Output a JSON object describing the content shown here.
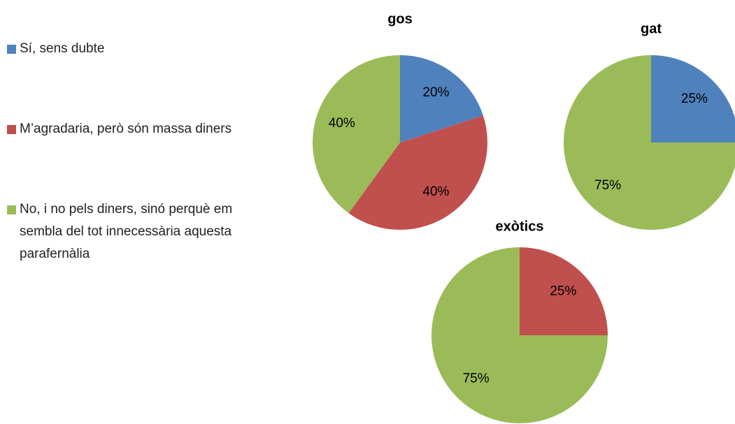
{
  "chart_data": [
    {
      "type": "pie",
      "title": "gos",
      "categories": [
        "Sí, sens dubte",
        "M’agradaria, però són massa diners",
        "No, i no pels diners, sinó perquè em sembla del tot innecessària aquesta parafernàlia"
      ],
      "colors": [
        "#4f81bd",
        "#c0504d",
        "#9bbb59"
      ],
      "values": [
        20,
        40,
        40
      ],
      "value_labels": [
        "20%",
        "40%",
        "40%"
      ]
    },
    {
      "type": "pie",
      "title": "gat",
      "categories": [
        "Sí, sens dubte",
        "M’agradaria, però són massa diners",
        "No, i no pels diners, sinó perquè em sembla del tot innecessària aquesta parafernàlia"
      ],
      "colors": [
        "#4f81bd",
        "#c0504d",
        "#9bbb59"
      ],
      "values": [
        25,
        0,
        75
      ],
      "value_labels": [
        "25%",
        null,
        "75%"
      ]
    },
    {
      "type": "pie",
      "title": "exòtics",
      "categories": [
        "Sí, sens dubte",
        "M’agradaria, però són massa diners",
        "No, i no pels diners, sinó perquè em sembla del tot innecessària aquesta parafernàlia"
      ],
      "colors": [
        "#4f81bd",
        "#c0504d",
        "#9bbb59"
      ],
      "values": [
        0,
        25,
        75
      ],
      "value_labels": [
        null,
        "25%",
        "75%"
      ]
    }
  ]
}
